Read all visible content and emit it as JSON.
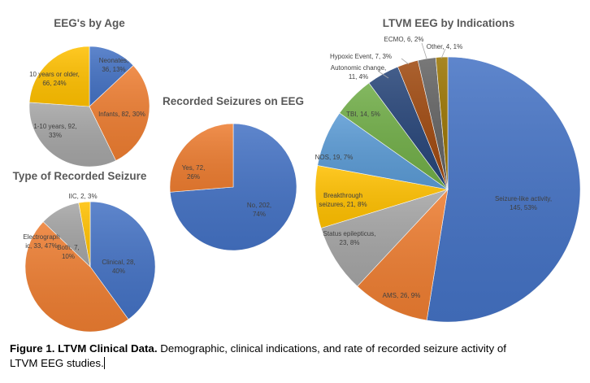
{
  "chart_data": [
    {
      "id": "age",
      "type": "pie",
      "title": "EEG's by Age",
      "start": "12 o'clock, clockwise",
      "slices": [
        {
          "label": "Neonates",
          "value": 36,
          "percent": 13,
          "color": "#4472c4",
          "text": [
            "Neonates,",
            "36, 13%"
          ]
        },
        {
          "label": "Infants",
          "value": 82,
          "percent": 30,
          "color": "#ed7d31",
          "text": [
            "Infants, 82, 30%"
          ]
        },
        {
          "label": "1-10 years",
          "value": 92,
          "percent": 33,
          "color": "#a5a5a5",
          "text": [
            "1-10 years, 92,",
            "33%"
          ]
        },
        {
          "label": "10 years or older",
          "value": 66,
          "percent": 24,
          "color": "#ffc000",
          "text": [
            "10 years or older,",
            "66, 24%"
          ]
        }
      ]
    },
    {
      "id": "recorded",
      "type": "pie",
      "title": "Recorded Seizures on EEG",
      "start": "12 o'clock, clockwise",
      "slices": [
        {
          "label": "No",
          "value": 202,
          "percent": 74,
          "color": "#4472c4",
          "text": [
            "No, 202,",
            "74%"
          ]
        },
        {
          "label": "Yes",
          "value": 72,
          "percent": 26,
          "color": "#ed7d31",
          "text": [
            "Yes, 72,",
            "26%"
          ]
        }
      ]
    },
    {
      "id": "type",
      "type": "pie",
      "title": "Type of Recorded Seizure",
      "start": "12 o'clock, clockwise",
      "slices": [
        {
          "label": "Clinical",
          "value": 28,
          "percent": 40,
          "color": "#4472c4",
          "text": [
            "Clinical, 28,",
            "40%"
          ]
        },
        {
          "label": "Electrographic",
          "value": 33,
          "percent": 47,
          "color": "#ed7d31",
          "text": [
            "Electrograph",
            "ic, 33, 47%"
          ]
        },
        {
          "label": "Both",
          "value": 7,
          "percent": 10,
          "color": "#a5a5a5",
          "text": [
            "Both, 7,",
            "10%"
          ]
        },
        {
          "label": "IIC",
          "value": 2,
          "percent": 3,
          "color": "#ffc000",
          "text": [
            "IIC, 2, 3%"
          ]
        }
      ]
    },
    {
      "id": "indications",
      "type": "pie",
      "title": "LTVM EEG by Indications",
      "start": "12 o'clock, clockwise",
      "slices": [
        {
          "label": "Seizure-like activity",
          "value": 145,
          "percent": 53,
          "color": "#4472c4",
          "text": [
            "Seizure-like activity,",
            "145, 53%"
          ]
        },
        {
          "label": "AMS",
          "value": 26,
          "percent": 9,
          "color": "#ed7d31",
          "text": [
            "AMS, 26, 9%"
          ]
        },
        {
          "label": "Status epilepticus",
          "value": 23,
          "percent": 8,
          "color": "#a5a5a5",
          "text": [
            "Status epilepticus,",
            "23, 8%"
          ]
        },
        {
          "label": "Breakthrough seizures",
          "value": 21,
          "percent": 8,
          "color": "#ffc000",
          "text": [
            "Breakthrough",
            "seizures, 21, 8%"
          ]
        },
        {
          "label": "NOS",
          "value": 19,
          "percent": 7,
          "color": "#5b9bd5",
          "text": [
            "NOS, 19, 7%"
          ]
        },
        {
          "label": "TBI",
          "value": 14,
          "percent": 5,
          "color": "#70ad47",
          "text": [
            "TBI, 14, 5%"
          ]
        },
        {
          "label": "Autonomic change",
          "value": 11,
          "percent": 4,
          "color": "#264478",
          "text": [
            "Autonomic change,",
            "11, 4%"
          ]
        },
        {
          "label": "Hypoxic Event",
          "value": 7,
          "percent": 3,
          "color": "#9e480e",
          "text": [
            "Hypoxic Event, 7, 3%"
          ]
        },
        {
          "label": "ECMO",
          "value": 6,
          "percent": 2,
          "color": "#636363",
          "text": [
            "ECMO, 6, 2%"
          ]
        },
        {
          "label": "Other",
          "value": 4,
          "percent": 1,
          "color": "#997300",
          "text": [
            "Other, 4, 1%"
          ]
        }
      ]
    }
  ],
  "caption": {
    "bold": "Figure 1. LTVM Clinical Data.",
    "text": " Demographic, clinical indications, and rate of recorded seizure activity of LTVM EEG studies."
  }
}
